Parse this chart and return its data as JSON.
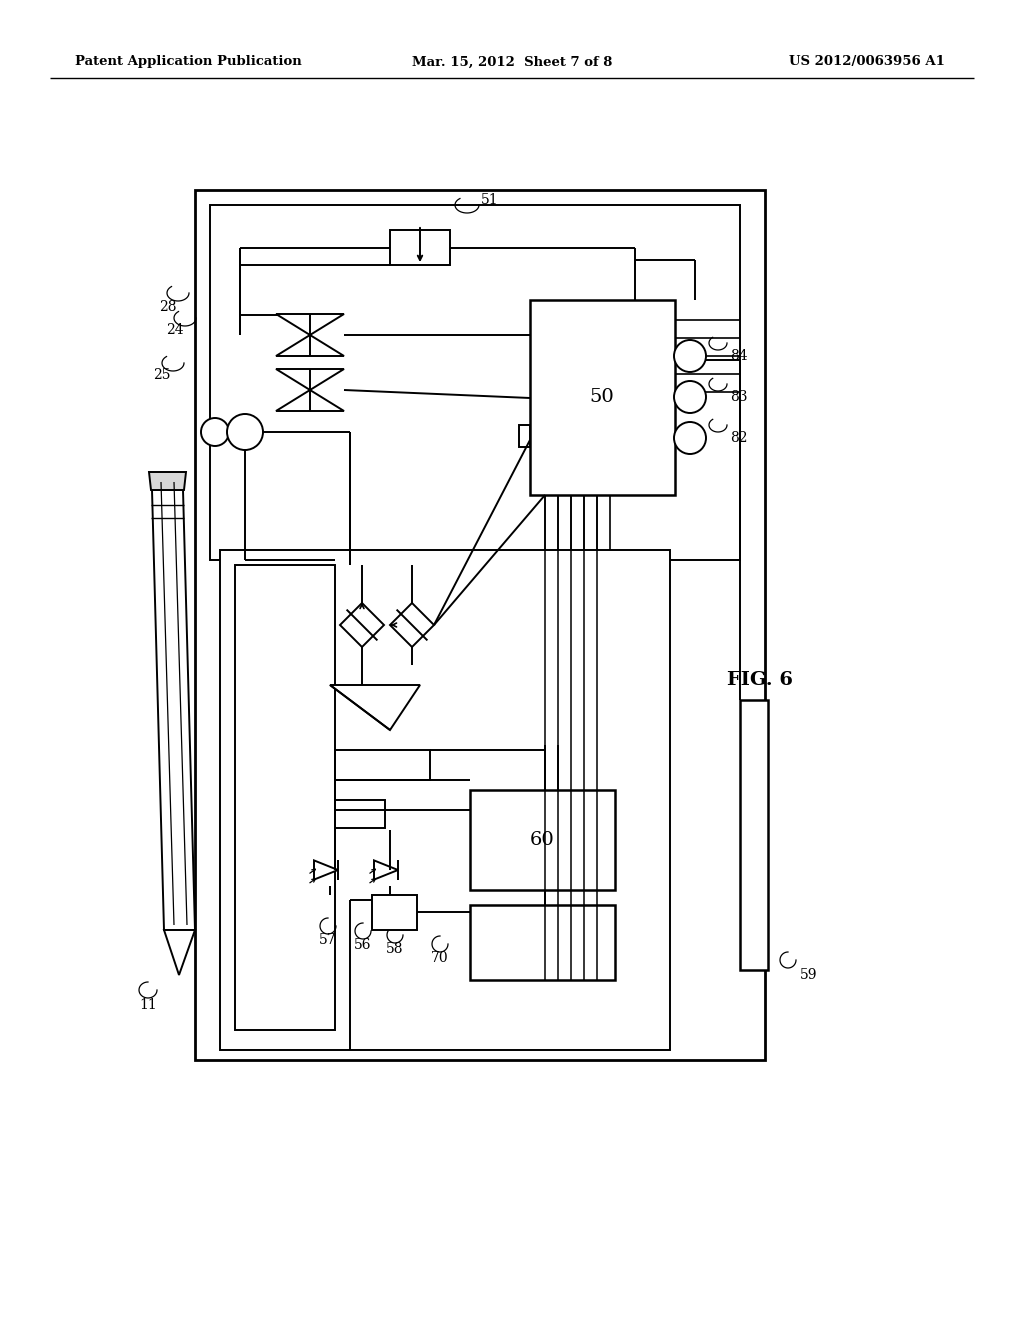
{
  "bg_color": "#ffffff",
  "line_color": "#000000",
  "header_left": "Patent Application Publication",
  "header_center": "Mar. 15, 2012  Sheet 7 of 8",
  "header_right": "US 2012/0063956 A1",
  "fig_label": "FIG. 6",
  "lw": 1.4
}
